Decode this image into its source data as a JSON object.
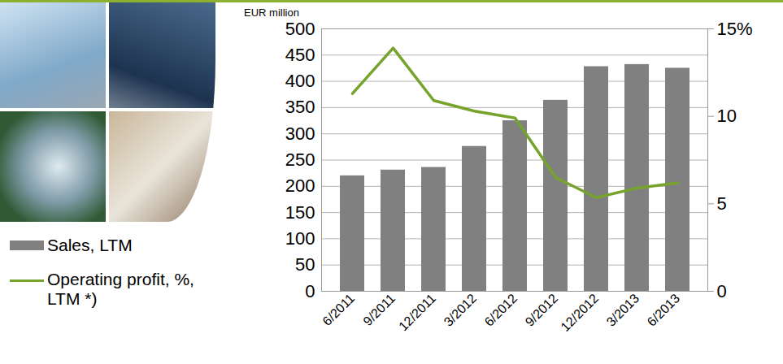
{
  "chart_data": {
    "type": "bar",
    "y_label": "EUR million",
    "categories": [
      "6/2011",
      "9/2011",
      "12/2011",
      "3/2012",
      "6/2012",
      "9/2012",
      "12/2012",
      "3/2013",
      "6/2013"
    ],
    "series": [
      {
        "name": "Sales, LTM",
        "type": "bar",
        "color": "#808080",
        "values": [
          220,
          231,
          236,
          276,
          325,
          364,
          428,
          432,
          425
        ]
      },
      {
        "name": "Operating profit, %, LTM *)",
        "type": "line",
        "axis": "y2",
        "color": "#76a32c",
        "values": [
          11.3,
          13.9,
          10.9,
          10.3,
          9.9,
          6.5,
          5.35,
          5.9,
          6.2
        ]
      }
    ],
    "ylim": [
      0,
      500
    ],
    "yticks": [
      0,
      50,
      100,
      150,
      200,
      250,
      300,
      350,
      400,
      450,
      500
    ],
    "y2lim": [
      0,
      15
    ],
    "y2ticks": [
      0,
      5,
      10,
      {
        "value": 15,
        "label": "15%"
      }
    ],
    "grid": true,
    "legend": "bottom-left"
  }
}
